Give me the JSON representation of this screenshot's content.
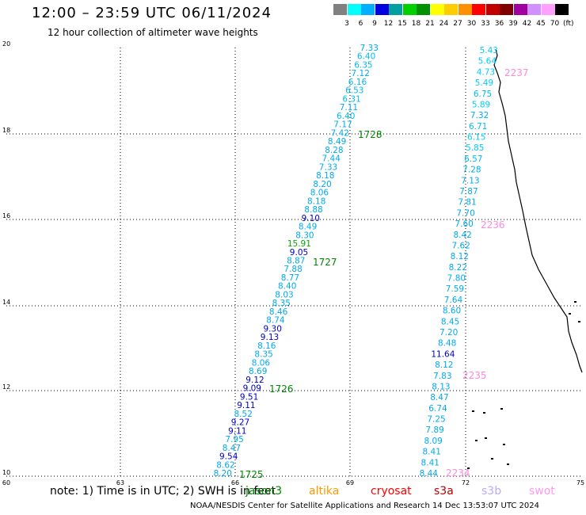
{
  "header": {
    "title": "12:00 – 23:59 UTC 06/11/2024",
    "subtitle": "12 hour collection of altimeter wave heights"
  },
  "color_scale": {
    "colors": [
      "#808080",
      "#00ffff",
      "#00b0ff",
      "#0000e0",
      "#00a0a0",
      "#00d000",
      "#009000",
      "#ffff00",
      "#ffcc00",
      "#ff9000",
      "#ff0000",
      "#c00000",
      "#800000",
      "#a000a0",
      "#d090ff",
      "#ffa0ff",
      "#000000"
    ],
    "labels": [
      "3",
      "6",
      "9",
      "12",
      "15",
      "18",
      "21",
      "24",
      "27",
      "30",
      "33",
      "36",
      "39",
      "42",
      "45",
      "70"
    ],
    "unit": "(ft)"
  },
  "axes": {
    "lon_labels": [
      "60",
      "63",
      "66",
      "69",
      "72",
      "75"
    ],
    "lat_labels": [
      "20",
      "18",
      "16",
      "14",
      "12",
      "10"
    ]
  },
  "track_east": {
    "readings": [
      {
        "v": "5.43",
        "c": "#00ccff"
      },
      {
        "v": "5.64",
        "c": "#00ccff"
      },
      {
        "v": "4.73",
        "c": "#00ccff"
      },
      {
        "v": "5.49",
        "c": "#00ccff"
      },
      {
        "v": "6.75",
        "c": "#00bbee"
      },
      {
        "v": "5.89",
        "c": "#00ccff"
      },
      {
        "v": "7.32",
        "c": "#00aaee"
      },
      {
        "v": "6.71",
        "c": "#00bbee"
      },
      {
        "v": "6.15",
        "c": "#00ccff"
      },
      {
        "v": "5.85",
        "c": "#00ccff"
      },
      {
        "v": "6.57",
        "c": "#00bbee"
      },
      {
        "v": "7.28",
        "c": "#00aaee"
      },
      {
        "v": "7.13",
        "c": "#00aaee"
      },
      {
        "v": "7.87",
        "c": "#00aaee"
      },
      {
        "v": "7.81",
        "c": "#00aaee"
      },
      {
        "v": "7.70",
        "c": "#00aaee"
      },
      {
        "v": "7.60",
        "c": "#00aaee"
      },
      {
        "v": "8.42",
        "c": "#00aaee"
      },
      {
        "v": "7.62",
        "c": "#00aaee"
      },
      {
        "v": "8.12",
        "c": "#00aaee"
      },
      {
        "v": "8.22",
        "c": "#00aaee"
      },
      {
        "v": "7.80",
        "c": "#00aaee"
      },
      {
        "v": "7.59",
        "c": "#00aaee"
      },
      {
        "v": "7.64",
        "c": "#00aaee"
      },
      {
        "v": "8.60",
        "c": "#00aaee"
      },
      {
        "v": "8.45",
        "c": "#00aaee"
      },
      {
        "v": "7.20",
        "c": "#00aaee"
      },
      {
        "v": "8.48",
        "c": "#00aaee"
      },
      {
        "v": "11.64",
        "c": "#0000cc"
      },
      {
        "v": "8.12",
        "c": "#00aaee"
      },
      {
        "v": "7.83",
        "c": "#00aaee"
      },
      {
        "v": "8.13",
        "c": "#00aaee"
      },
      {
        "v": "8.47",
        "c": "#00aaee"
      },
      {
        "v": "6.74",
        "c": "#00aaee"
      },
      {
        "v": "7.25",
        "c": "#00aaee"
      },
      {
        "v": "7.89",
        "c": "#00aaee"
      },
      {
        "v": "8.09",
        "c": "#00aaee"
      },
      {
        "v": "8.41",
        "c": "#00aaee"
      },
      {
        "v": "8.41",
        "c": "#00aaee"
      },
      {
        "v": "8.44",
        "c": "#00aaee"
      }
    ]
  },
  "track_west": {
    "readings": [
      {
        "v": "7.33",
        "c": "#00aaee"
      },
      {
        "v": "6.40",
        "c": "#00bbee"
      },
      {
        "v": "6.35",
        "c": "#00bbee"
      },
      {
        "v": "7.12",
        "c": "#00aaee"
      },
      {
        "v": "6.16",
        "c": "#00bbee"
      },
      {
        "v": "6.53",
        "c": "#00bbee"
      },
      {
        "v": "6.31",
        "c": "#00bbee"
      },
      {
        "v": "7.11",
        "c": "#00aaee"
      },
      {
        "v": "6.40",
        "c": "#00bbee"
      },
      {
        "v": "7.17",
        "c": "#00aaee"
      },
      {
        "v": "7.42",
        "c": "#00aaee"
      },
      {
        "v": "8.49",
        "c": "#00aaee"
      },
      {
        "v": "8.28",
        "c": "#00aaee"
      },
      {
        "v": "7.44",
        "c": "#00aaee"
      },
      {
        "v": "7.33",
        "c": "#00aaee"
      },
      {
        "v": "8.18",
        "c": "#00aaee"
      },
      {
        "v": "8.20",
        "c": "#00aaee"
      },
      {
        "v": "8.06",
        "c": "#00aaee"
      },
      {
        "v": "8.18",
        "c": "#00aaee"
      },
      {
        "v": "8.88",
        "c": "#00aaee"
      },
      {
        "v": "9.10",
        "c": "#0000cc"
      },
      {
        "v": "8.49",
        "c": "#00aaee"
      },
      {
        "v": "8.30",
        "c": "#00aaee"
      },
      {
        "v": "15.91",
        "c": "#00aa00"
      },
      {
        "v": "9.05",
        "c": "#0000cc"
      },
      {
        "v": "8.87",
        "c": "#00aaee"
      },
      {
        "v": "7.88",
        "c": "#00aaee"
      },
      {
        "v": "8.77",
        "c": "#00aaee"
      },
      {
        "v": "8.40",
        "c": "#00aaee"
      },
      {
        "v": "8.03",
        "c": "#00aaee"
      },
      {
        "v": "8.35",
        "c": "#00aaee"
      },
      {
        "v": "8.46",
        "c": "#00aaee"
      },
      {
        "v": "8.74",
        "c": "#00aaee"
      },
      {
        "v": "9.30",
        "c": "#0000cc"
      },
      {
        "v": "9.13",
        "c": "#0000cc"
      },
      {
        "v": "8.16",
        "c": "#00aaee"
      },
      {
        "v": "8.35",
        "c": "#00aaee"
      },
      {
        "v": "8.06",
        "c": "#00aaee"
      },
      {
        "v": "8.69",
        "c": "#00aaee"
      },
      {
        "v": "9.12",
        "c": "#0000cc"
      },
      {
        "v": "9.09",
        "c": "#0000cc"
      },
      {
        "v": "9.51",
        "c": "#0000cc"
      },
      {
        "v": "9.11",
        "c": "#0000cc"
      },
      {
        "v": "8.52",
        "c": "#00aaee"
      },
      {
        "v": "9.27",
        "c": "#0000cc"
      },
      {
        "v": "9.11",
        "c": "#0000cc"
      },
      {
        "v": "7.95",
        "c": "#00aaee"
      },
      {
        "v": "8.47",
        "c": "#00aaee"
      },
      {
        "v": "9.54",
        "c": "#0000cc"
      },
      {
        "v": "8.62",
        "c": "#00aaee"
      },
      {
        "v": "8.20",
        "c": "#00aaee"
      }
    ]
  },
  "time_marks": [
    {
      "t": "2237",
      "c": "#ff88dd"
    },
    {
      "t": "2236",
      "c": "#ff88dd"
    },
    {
      "t": "2235",
      "c": "#ff88dd"
    },
    {
      "t": "2234",
      "c": "#ff88dd"
    },
    {
      "t": "1728",
      "c": "#008800"
    },
    {
      "t": "1727",
      "c": "#008800"
    },
    {
      "t": "1726",
      "c": "#008800"
    },
    {
      "t": "1725",
      "c": "#008800"
    }
  ],
  "footer": {
    "note": "note: 1) Time is in UTC; 2) SWH is in feet",
    "satellites": [
      {
        "name": "jason3",
        "color": "#008800"
      },
      {
        "name": "altika",
        "color": "#ff9900"
      },
      {
        "name": "cryosat",
        "color": "#ff0000"
      },
      {
        "name": "s3a",
        "color": "#bb0000"
      },
      {
        "name": "s3b",
        "color": "#bbaaff"
      },
      {
        "name": "swot",
        "color": "#ff99ee"
      }
    ],
    "credit": "NOAA/NESDIS Center for Satellite Applications and Research   14 Dec 13:53:07 UTC 2024"
  }
}
